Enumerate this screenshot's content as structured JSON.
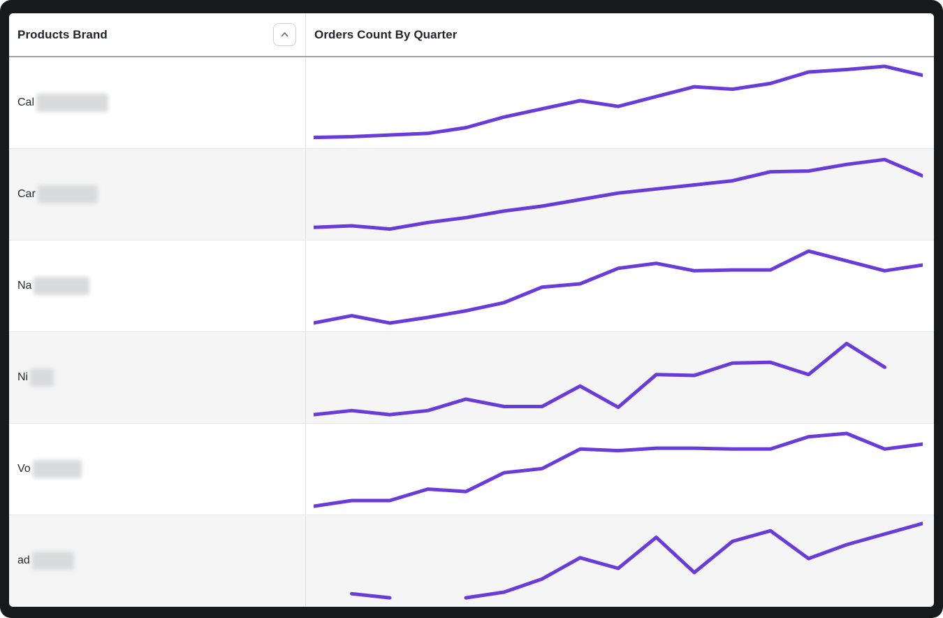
{
  "table": {
    "header": {
      "brand_column_label": "Products Brand",
      "chart_column_label": "Orders Count By Quarter",
      "sort_icon": "chevron-up",
      "sort_direction": "ascending"
    },
    "rows": [
      {
        "brand_prefix": "Cal",
        "brand_redacted": true,
        "redact_width": 103
      },
      {
        "brand_prefix": "Car",
        "brand_redacted": true,
        "redact_width": 86
      },
      {
        "brand_prefix": "Na",
        "brand_redacted": true,
        "redact_width": 80
      },
      {
        "brand_prefix": "Ni",
        "brand_redacted": true,
        "redact_width": 34
      },
      {
        "brand_prefix": "Vo",
        "brand_redacted": true,
        "redact_width": 70
      },
      {
        "brand_prefix": "ad",
        "brand_redacted": true,
        "redact_width": 60
      }
    ]
  },
  "chart_data": {
    "type": "line",
    "title": "Orders Count By Quarter",
    "xlabel": "",
    "ylabel": "Orders Count",
    "x_count": 17,
    "x_description": "17 consecutive quarters, tick labels not shown in sparklines",
    "value_scale": "percent of each sparkline row height (no numeric axis rendered); null = missing quarter",
    "grid": false,
    "legend": false,
    "line_color": "#693bd8",
    "series": [
      {
        "name": "Cal (redacted)",
        "values": [
          8,
          9,
          11,
          13,
          20,
          33,
          43,
          53,
          46,
          58,
          70,
          67,
          74,
          88,
          91,
          95,
          84
        ]
      },
      {
        "name": "Car (redacted)",
        "values": [
          10,
          12,
          8,
          16,
          22,
          30,
          36,
          44,
          52,
          57,
          62,
          67,
          78,
          79,
          87,
          93,
          73
        ]
      },
      {
        "name": "Na (redacted)",
        "values": [
          5,
          14,
          5,
          12,
          20,
          30,
          49,
          53,
          72,
          78,
          69,
          70,
          70,
          93,
          81,
          69,
          76
        ]
      },
      {
        "name": "Ni (redacted)",
        "values": [
          5,
          10,
          5,
          10,
          24,
          15,
          15,
          40,
          14,
          54,
          53,
          68,
          69,
          54,
          92,
          63,
          null
        ]
      },
      {
        "name": "Vo (redacted)",
        "values": [
          5,
          12,
          12,
          26,
          23,
          46,
          51,
          75,
          73,
          76,
          76,
          75,
          75,
          90,
          94,
          75,
          81
        ]
      },
      {
        "name": "ad (redacted)",
        "values": [
          null,
          10,
          5,
          null,
          5,
          12,
          28,
          54,
          41,
          79,
          36,
          74,
          87,
          53,
          70,
          83,
          96
        ]
      }
    ]
  }
}
